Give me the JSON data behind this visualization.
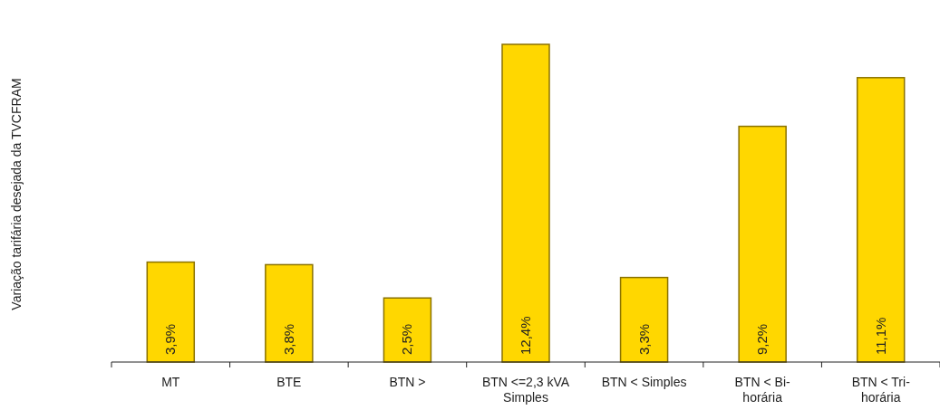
{
  "chart_data": {
    "type": "bar",
    "annotations": [
      "Variação tarifária desejada da TVCFRAM"
    ],
    "categories": [
      "MT",
      "BTE",
      "BTN >",
      "BTN <=2,3 kVA Simples",
      "BTN < Simples",
      "BTN < Bi-horária",
      "BTN < Tri-horária"
    ],
    "values": [
      3.9,
      3.8,
      2.5,
      12.4,
      3.3,
      9.2,
      11.1
    ],
    "value_labels": [
      "3,9%",
      "3,8%",
      "2,5%",
      "12,4%",
      "3,3%",
      "9,2%",
      "11,1%"
    ],
    "color": "#ffd700"
  }
}
